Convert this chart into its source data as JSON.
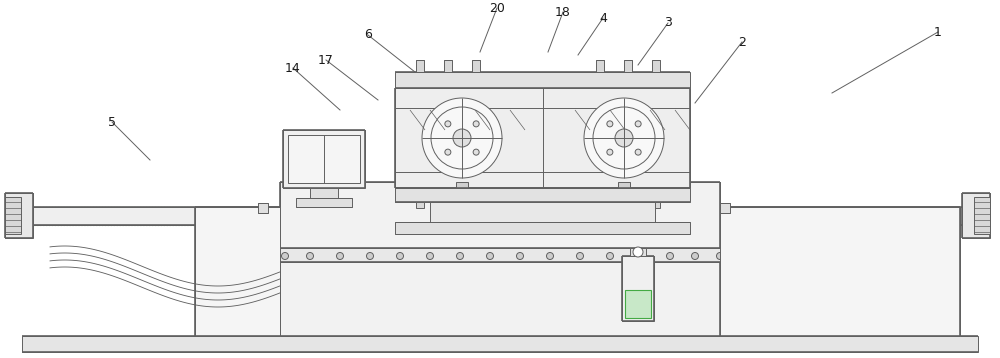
{
  "bg_color": "#ffffff",
  "lc": "#606060",
  "lw": 0.7,
  "tlw": 1.2,
  "annotations": [
    [
      "1",
      938,
      32,
      832,
      93
    ],
    [
      "2",
      742,
      42,
      695,
      103
    ],
    [
      "3",
      668,
      23,
      638,
      65
    ],
    [
      "4",
      603,
      18,
      578,
      55
    ],
    [
      "5",
      112,
      122,
      150,
      160
    ],
    [
      "6",
      368,
      35,
      415,
      72
    ],
    [
      "14",
      293,
      68,
      340,
      110
    ],
    [
      "17",
      326,
      60,
      378,
      100
    ],
    [
      "18",
      563,
      12,
      548,
      52
    ],
    [
      "20",
      497,
      8,
      480,
      52
    ]
  ]
}
